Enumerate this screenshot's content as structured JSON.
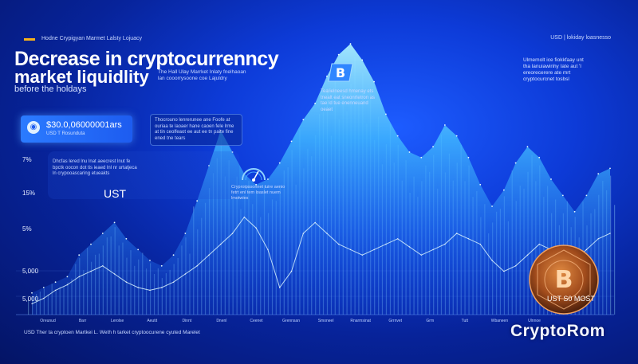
{
  "header": {
    "kicker": "Hodne Crypigyan Marmet Lalsty Lojuacy",
    "right_label": "USD | lokiday loasnesso",
    "title_line1": "Decrease in cryptocurrenncy",
    "title_line2": "market liquidlity",
    "title_line3": "before   the holdays",
    "side_note": "The Hall Ulay Marrket Inlaty fnelhaoan lan cooorrysoone coe Lajuldry"
  },
  "value_card": {
    "icon": "wallet-icon",
    "value": "$30.0,06000001ars",
    "sub": "USD T Rosunduta"
  },
  "note_card": {
    "text": "Thocrouno lenrerunee ane Foofe at ouriaa te laoaer hane caoen fele lrme at tin ceolfeaot ee aut ee tn paite fine ened tne tears"
  },
  "left_panel": {
    "text": "Dhcfas lered lnu lnat aeecrest lnut fe bpctk oocon dot tis ieaed lnl nr urtatjeca ln crypooascaring etueakts"
  },
  "ust_label": "UST",
  "gauge": {
    "icon": "gauge-icon",
    "text": "Cryproipssonnet tuire aenio fetrt enl tem loaslet nuem lmotwies"
  },
  "btc_tag": {
    "icon": "bitcoin-icon",
    "text": "Tea/ielneesd hmenay ets tnealt eat sneonrtetron as tae ld tue enenneuand oeaet"
  },
  "right_note": "Ulmemolt ice fiokkfaay unt tha lanuiawinhy Iate aut 'l ereorecerere ate mrt cryptocurcnet tosbsl",
  "bottom_caption": "USD  Ther ta cryptoen Martkei L.  Weth h tarket cryptoocurene cyuted Marelet",
  "ust_bottom": "UST S0 MOST",
  "logo": {
    "text": "CryptoRom",
    "coin_icon": "bitcoin-coin-icon",
    "coin_symbol": "B"
  },
  "colors": {
    "background": "#0d3bd8",
    "accent": "#f6b21a",
    "area": "#5fd0ff",
    "line": "#d8f4ff",
    "coin": "#c86a2a"
  },
  "chart_data": {
    "type": "area",
    "title": "Decrease in cryptocurrenncy market liquidlity before the holdays",
    "xlabel": "",
    "ylabel": "",
    "y_tick_labels": [
      "7%",
      "15%",
      "5%",
      "5,000",
      "5,000"
    ],
    "x_tick_labels": [
      "Oreunud",
      "Barr",
      "Lerolse",
      "Aeutit",
      "Dinnt",
      "Dnenl",
      "Ceenet",
      "Grennsan",
      "Smoneel",
      "Rnarmsinat",
      "Grrnvet",
      "Grm",
      "Tutt",
      "Wbaneen",
      "Ulnnoe"
    ],
    "series": [
      {
        "values": [
          8,
          10,
          12,
          14,
          22,
          26,
          30,
          34,
          28,
          24,
          20,
          18,
          22,
          30,
          42,
          55,
          68,
          60,
          52,
          48,
          50,
          56,
          64,
          72,
          78,
          88,
          96,
          100,
          94,
          86,
          74,
          66,
          60,
          58,
          62,
          70,
          66,
          58,
          48,
          40,
          46,
          56,
          62,
          58,
          50,
          44,
          38,
          44,
          52,
          54
        ]
      },
      {
        "values": [
          4,
          6,
          9,
          11,
          14,
          16,
          18,
          15,
          12,
          10,
          9,
          10,
          12,
          15,
          18,
          22,
          26,
          30,
          36,
          32,
          24,
          10,
          16,
          30,
          34,
          30,
          26,
          24,
          22,
          24,
          26,
          28,
          25,
          22,
          24,
          26,
          30,
          28,
          26,
          20,
          16,
          18,
          22,
          26,
          24,
          22,
          20,
          24,
          28,
          30
        ]
      }
    ]
  }
}
